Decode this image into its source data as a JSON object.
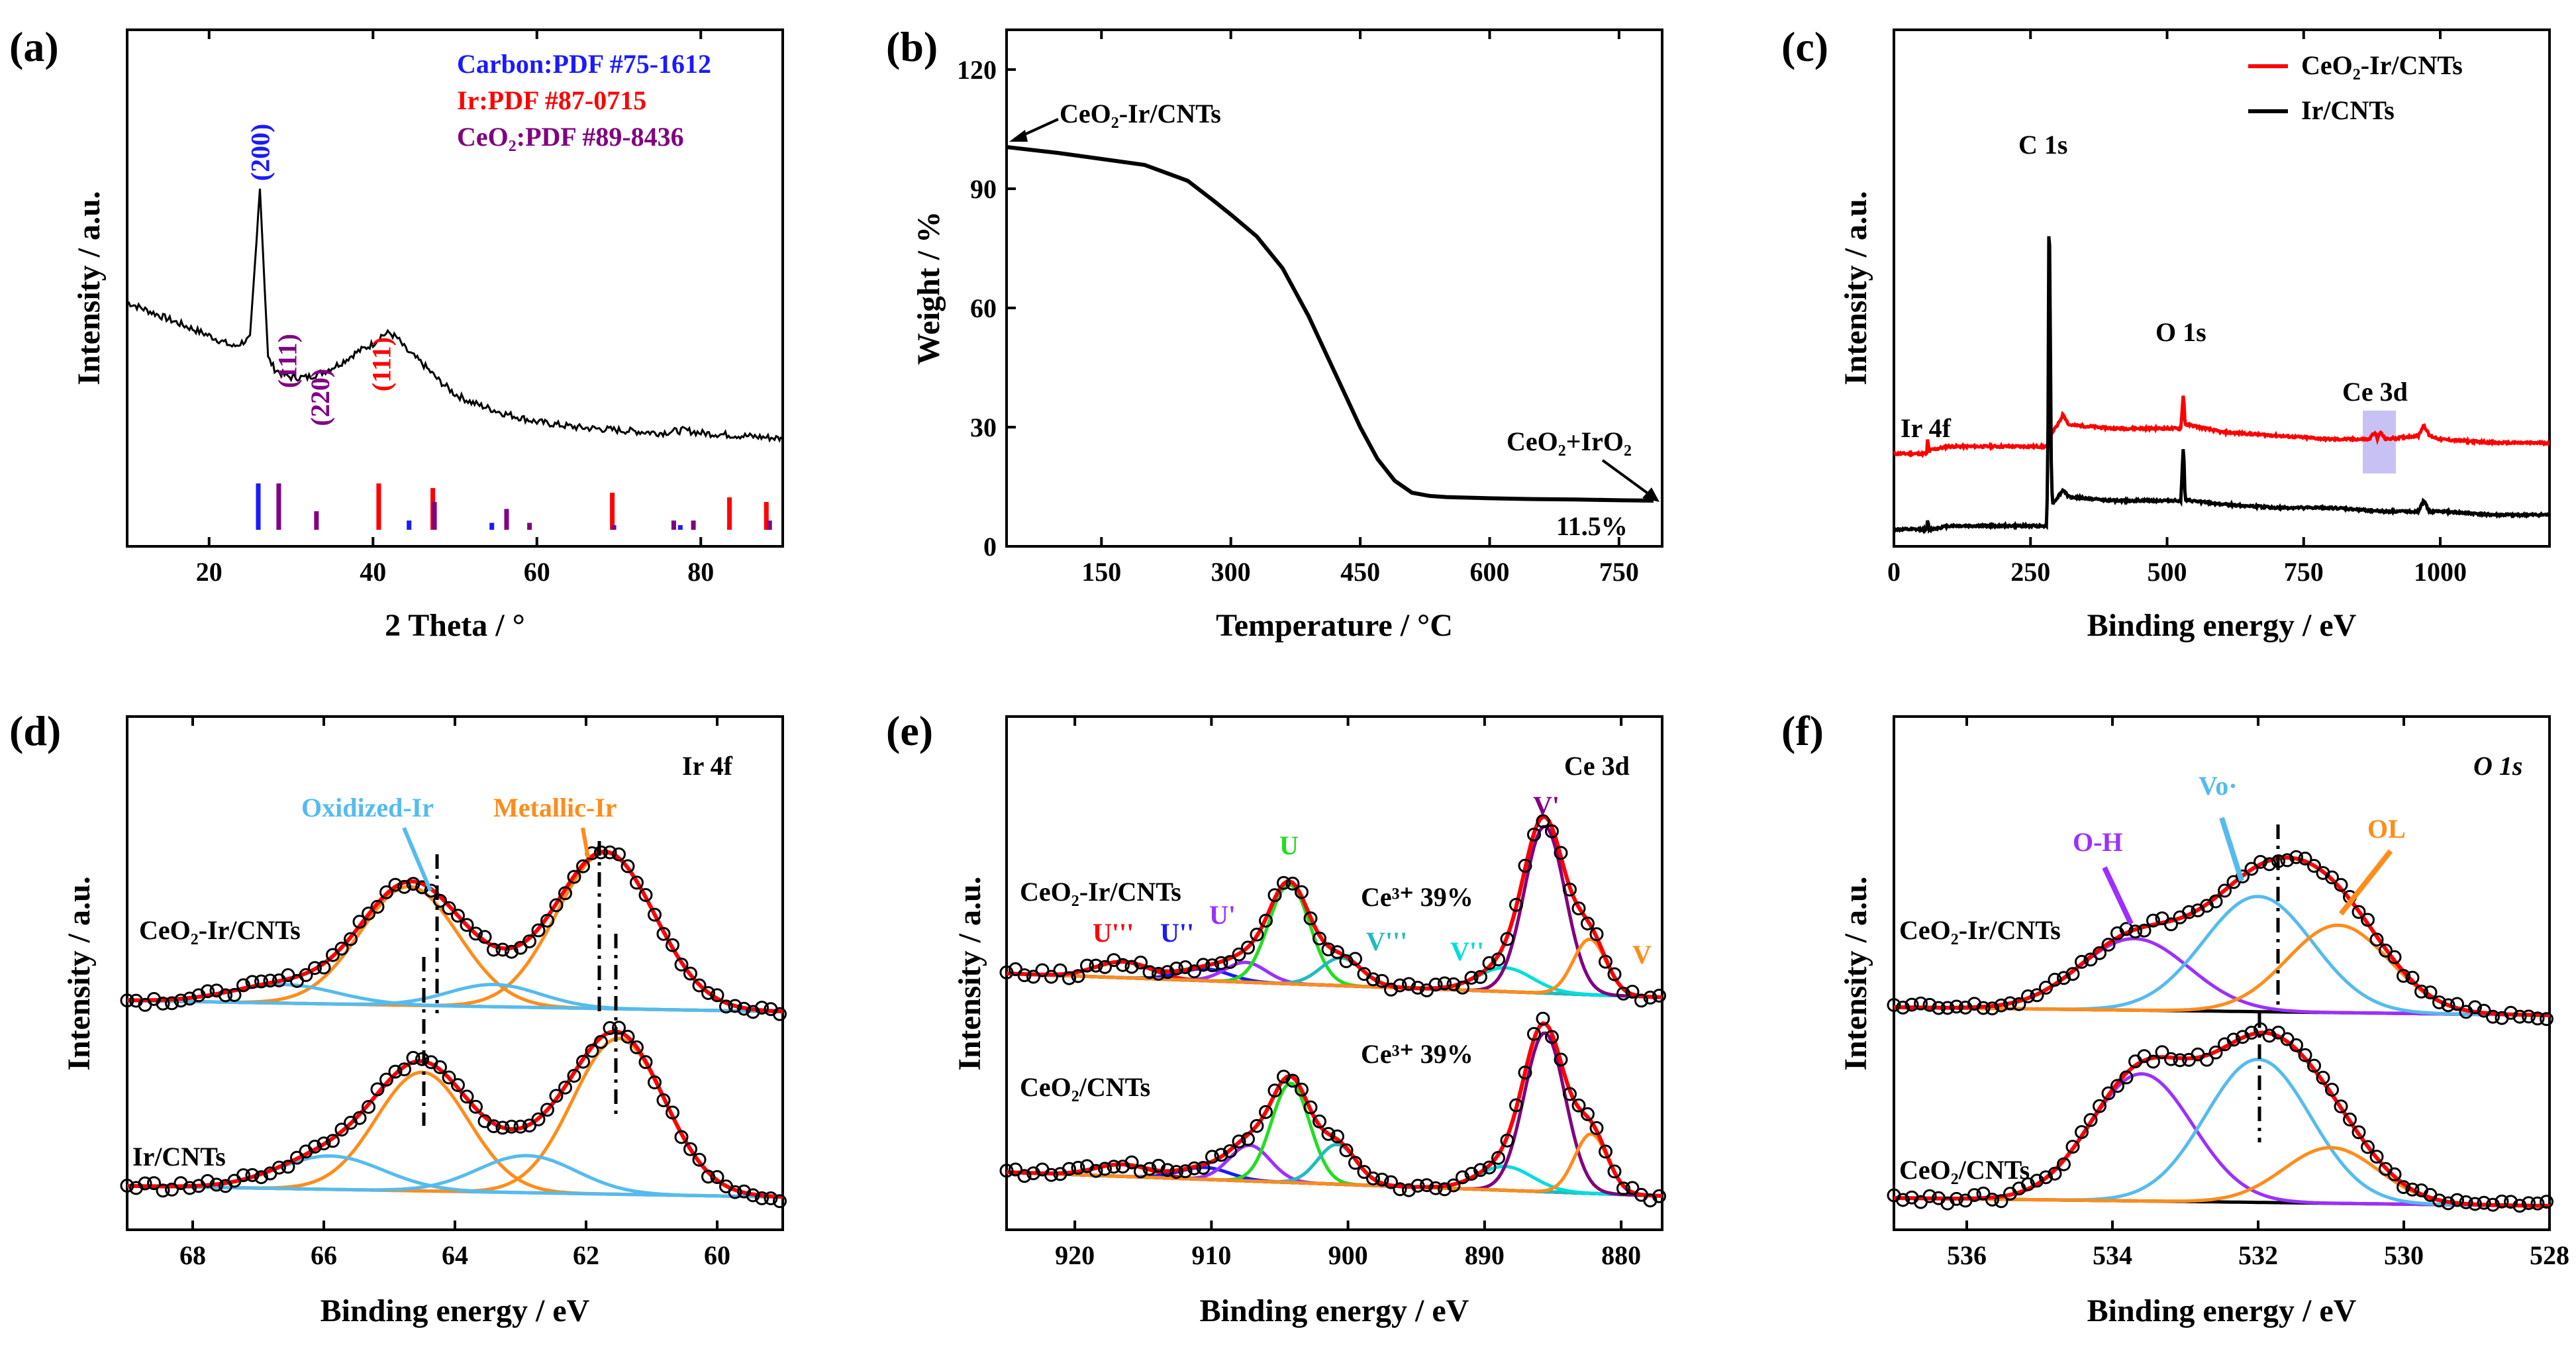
{
  "colors": {
    "black": "#000000",
    "red": "#ff0000",
    "blue": "#1a1aff",
    "purple": "#800080",
    "green": "#22dd22",
    "cyan": "#22bbbb",
    "lightblue": "#55bbee",
    "orange": "#ff8c1a",
    "violet": "#9b30ff"
  },
  "chart_data": [
    {
      "id": "a",
      "panel": "(a)",
      "type": "line",
      "xlabel": "2 Theta / °",
      "ylabel": "Intensity / a.u.",
      "xlim": [
        10,
        90
      ],
      "xticks": [
        20,
        40,
        60,
        80
      ],
      "legend": [
        {
          "text": "Carbon:PDF #75-1612",
          "color": "#1a1aff"
        },
        {
          "text": "Ir:PDF #87-0715",
          "color": "#ff0000"
        },
        {
          "text": "CeO₂:PDF #89-8436",
          "color": "#800080"
        }
      ],
      "peak_labels": [
        {
          "text": "(200)",
          "x": 26.2,
          "color": "#1a1aff"
        },
        {
          "text": "(111)",
          "x": 29.5,
          "color": "#800080"
        },
        {
          "text": "(220)",
          "x": 33.5,
          "color": "#800080"
        },
        {
          "text": "(111)",
          "x": 41.0,
          "color": "#ff0000"
        }
      ],
      "pattern": {
        "x": [
          10,
          15,
          20,
          23,
          25,
          25.8,
          26.2,
          26.6,
          27.2,
          28,
          29,
          30,
          32,
          34,
          36,
          38,
          40,
          41,
          42,
          43,
          44,
          46,
          48,
          50,
          52,
          54,
          56,
          60,
          65,
          70,
          75,
          78,
          80,
          85,
          90
        ],
        "y": [
          0.58,
          0.52,
          0.46,
          0.42,
          0.45,
          0.8,
          1.0,
          0.75,
          0.38,
          0.34,
          0.32,
          0.31,
          0.31,
          0.33,
          0.36,
          0.4,
          0.43,
          0.46,
          0.47,
          0.45,
          0.41,
          0.36,
          0.3,
          0.25,
          0.22,
          0.2,
          0.18,
          0.15,
          0.13,
          0.12,
          0.11,
          0.12,
          0.11,
          0.1,
          0.09
        ]
      },
      "ref_sticks": {
        "carbon": [
          [
            26.0,
            1.0
          ],
          [
            44.4,
            0.2
          ],
          [
            54.5,
            0.15
          ],
          [
            77.5,
            0.1
          ],
          [
            83.5,
            0.1
          ]
        ],
        "ir": [
          [
            40.7,
            1.0
          ],
          [
            47.3,
            0.9
          ],
          [
            69.2,
            0.8
          ],
          [
            83.5,
            0.7
          ],
          [
            88.0,
            0.6
          ]
        ],
        "ceo2": [
          [
            28.5,
            1.0
          ],
          [
            33.1,
            0.4
          ],
          [
            47.5,
            0.6
          ],
          [
            56.3,
            0.45
          ],
          [
            59.1,
            0.15
          ],
          [
            69.4,
            0.1
          ],
          [
            76.7,
            0.2
          ],
          [
            79.1,
            0.2
          ],
          [
            88.4,
            0.2
          ]
        ]
      }
    },
    {
      "id": "b",
      "panel": "(b)",
      "type": "line",
      "xlabel": "Temperature / °C",
      "ylabel": "Weight / %",
      "xlim": [
        40,
        800
      ],
      "ylim": [
        0,
        130
      ],
      "xticks": [
        150,
        300,
        450,
        600,
        750
      ],
      "yticks": [
        0,
        30,
        60,
        90,
        120
      ],
      "annotations": [
        "CeO₂-Ir/CNTs",
        "CeO₂+IrO₂",
        "11.5%"
      ],
      "curve": {
        "x": [
          40,
          100,
          150,
          200,
          250,
          280,
          300,
          330,
          360,
          390,
          420,
          450,
          470,
          490,
          510,
          530,
          550,
          600,
          650,
          700,
          750,
          790
        ],
        "y": [
          100.5,
          99,
          97.5,
          96,
          92,
          87,
          83.5,
          78,
          70,
          58,
          44,
          30,
          22,
          16.5,
          13.5,
          12.7,
          12.4,
          12.1,
          11.9,
          11.8,
          11.6,
          11.5
        ]
      }
    },
    {
      "id": "c",
      "panel": "(c)",
      "type": "line",
      "xlabel": "Binding energy / eV",
      "ylabel": "Intensity / a.u.",
      "xlim": [
        0,
        1200
      ],
      "xticks": [
        0,
        250,
        500,
        750,
        1000
      ],
      "series": [
        {
          "name": "CeO₂-Ir/CNTs",
          "color": "#ff0000",
          "x": [
            0,
            60,
            62,
            64,
            66,
            100,
            280,
            283,
            284,
            286,
            290,
            300,
            310,
            320,
            400,
            500,
            525,
            530,
            533,
            540,
            600,
            700,
            800,
            870,
            880,
            885,
            890,
            900,
            960,
            970,
            980,
            1000,
            1100,
            1200
          ],
          "y": [
            0.22,
            0.22,
            0.27,
            0.22,
            0.23,
            0.24,
            0.24,
            0.24,
            0.32,
            0.27,
            0.28,
            0.3,
            0.33,
            0.3,
            0.29,
            0.29,
            0.29,
            0.39,
            0.3,
            0.3,
            0.28,
            0.27,
            0.26,
            0.26,
            0.28,
            0.26,
            0.28,
            0.26,
            0.27,
            0.3,
            0.27,
            0.26,
            0.25,
            0.25
          ]
        },
        {
          "name": "Ir/CNTs",
          "color": "#000000",
          "x": [
            0,
            60,
            62,
            64,
            66,
            100,
            200,
            280,
            282,
            284,
            286,
            288,
            290,
            300,
            310,
            320,
            400,
            500,
            525,
            530,
            533,
            540,
            600,
            700,
            800,
            900,
            960,
            970,
            980,
            1000,
            1100,
            1200
          ],
          "y": [
            0.01,
            0.01,
            0.04,
            0.01,
            0.01,
            0.02,
            0.02,
            0.02,
            0.3,
            1.0,
            0.6,
            0.2,
            0.08,
            0.1,
            0.12,
            0.1,
            0.09,
            0.09,
            0.09,
            0.25,
            0.09,
            0.09,
            0.08,
            0.07,
            0.07,
            0.06,
            0.06,
            0.09,
            0.06,
            0.06,
            0.05,
            0.05
          ]
        }
      ],
      "peak_labels": [
        "Ir 4f",
        "C 1s",
        "O 1s",
        "Ce 3d"
      ]
    },
    {
      "id": "d",
      "panel": "(d)",
      "type": "line",
      "xlabel": "Binding energy / eV",
      "ylabel": "Intensity / a.u.",
      "xlim": [
        69,
        59
      ],
      "xticks": [
        68,
        66,
        64,
        62,
        60
      ],
      "corner_label": "Ir 4f",
      "components": [
        "Oxidized-Ir",
        "Metallic-Ir"
      ],
      "samples": [
        {
          "name": "CeO₂-Ir/CNTs",
          "offset": 0.5,
          "peaks": [
            {
              "c": 61.7,
              "a": 0.42,
              "w": 0.75,
              "comp": "Metallic-Ir"
            },
            {
              "c": 64.7,
              "a": 0.32,
              "w": 0.75,
              "comp": "Metallic-Ir"
            },
            {
              "c": 63.4,
              "a": 0.06,
              "w": 0.7,
              "comp": "Oxidized-Ir"
            },
            {
              "c": 66.6,
              "a": 0.05,
              "w": 0.8,
              "comp": "Oxidized-Ir"
            }
          ]
        },
        {
          "name": "Ir/CNTs",
          "offset": 0.0,
          "peaks": [
            {
              "c": 61.5,
              "a": 0.42,
              "w": 0.7,
              "comp": "Metallic-Ir"
            },
            {
              "c": 64.5,
              "a": 0.32,
              "w": 0.7,
              "comp": "Metallic-Ir"
            },
            {
              "c": 62.9,
              "a": 0.1,
              "w": 0.75,
              "comp": "Oxidized-Ir"
            },
            {
              "c": 65.9,
              "a": 0.09,
              "w": 0.8,
              "comp": "Oxidized-Ir"
            }
          ]
        }
      ]
    },
    {
      "id": "e",
      "panel": "(e)",
      "type": "line",
      "xlabel": "Binding energy / eV",
      "ylabel": "Intensity / a.u.",
      "xlim": [
        925,
        877
      ],
      "xticks": [
        920,
        910,
        900,
        890,
        880
      ],
      "corner_label": "Ce 3d",
      "peak_names": [
        "U'''",
        "U''",
        "U'",
        "U",
        "V'''",
        "V''",
        "V'",
        "V"
      ],
      "samples": [
        {
          "name": "CeO₂-Ir/CNTs",
          "ratio": "Ce³⁺ 39%",
          "offset": 0.5,
          "peaks": [
            {
              "c": 916.5,
              "a": 0.04,
              "w": 2.0,
              "color": "#ff0000"
            },
            {
              "c": 910.5,
              "a": 0.03,
              "w": 1.8,
              "color": "#1a1aff"
            },
            {
              "c": 907.5,
              "a": 0.05,
              "w": 1.5,
              "color": "#9b30ff"
            },
            {
              "c": 904.3,
              "a": 0.25,
              "w": 1.5,
              "color": "#22dd22"
            },
            {
              "c": 900.5,
              "a": 0.07,
              "w": 1.5,
              "color": "#22bbbb"
            },
            {
              "c": 888.5,
              "a": 0.06,
              "w": 2.0,
              "color": "#00dddd"
            },
            {
              "c": 885.6,
              "a": 0.42,
              "w": 1.5,
              "color": "#800080"
            },
            {
              "c": 882.3,
              "a": 0.14,
              "w": 1.2,
              "color": "#ff8c1a"
            }
          ]
        },
        {
          "name": "CeO₂/CNTs",
          "ratio": "Ce³⁺ 39%",
          "offset": 0.0,
          "peaks": [
            {
              "c": 916.5,
              "a": 0.03,
              "w": 2.0,
              "color": "#ff0000"
            },
            {
              "c": 910.5,
              "a": 0.03,
              "w": 1.8,
              "color": "#1a1aff"
            },
            {
              "c": 907.2,
              "a": 0.09,
              "w": 1.5,
              "color": "#9b30ff"
            },
            {
              "c": 904.2,
              "a": 0.25,
              "w": 1.4,
              "color": "#22dd22"
            },
            {
              "c": 900.8,
              "a": 0.1,
              "w": 1.4,
              "color": "#22bbbb"
            },
            {
              "c": 888.5,
              "a": 0.06,
              "w": 2.0,
              "color": "#00dddd"
            },
            {
              "c": 885.6,
              "a": 0.4,
              "w": 1.5,
              "color": "#800080"
            },
            {
              "c": 882.2,
              "a": 0.15,
              "w": 1.2,
              "color": "#ff8c1a"
            }
          ]
        }
      ]
    },
    {
      "id": "f",
      "panel": "(f)",
      "type": "line",
      "xlabel": "Binding energy / eV",
      "ylabel": "Intensity / a.u.",
      "xlim": [
        537,
        528
      ],
      "xticks": [
        536,
        534,
        532,
        530,
        528
      ],
      "corner_label": "O 1s",
      "components": [
        "O-H",
        "Vo·",
        "OL"
      ],
      "samples": [
        {
          "name": "CeO₂-Ir/CNTs",
          "offset": 0.48,
          "peaks": [
            {
              "c": 533.7,
              "a": 0.18,
              "w": 0.75,
              "color": "#9b30ff"
            },
            {
              "c": 532.0,
              "a": 0.29,
              "w": 0.75,
              "color": "#55bbee"
            },
            {
              "c": 530.9,
              "a": 0.22,
              "w": 0.7,
              "color": "#ff8c1a"
            }
          ]
        },
        {
          "name": "CeO₂/CNTs",
          "offset": 0.0,
          "peaks": [
            {
              "c": 533.6,
              "a": 0.32,
              "w": 0.7,
              "color": "#9b30ff"
            },
            {
              "c": 532.0,
              "a": 0.36,
              "w": 0.72,
              "color": "#55bbee"
            },
            {
              "c": 531.0,
              "a": 0.14,
              "w": 0.65,
              "color": "#ff8c1a"
            }
          ]
        }
      ]
    }
  ]
}
